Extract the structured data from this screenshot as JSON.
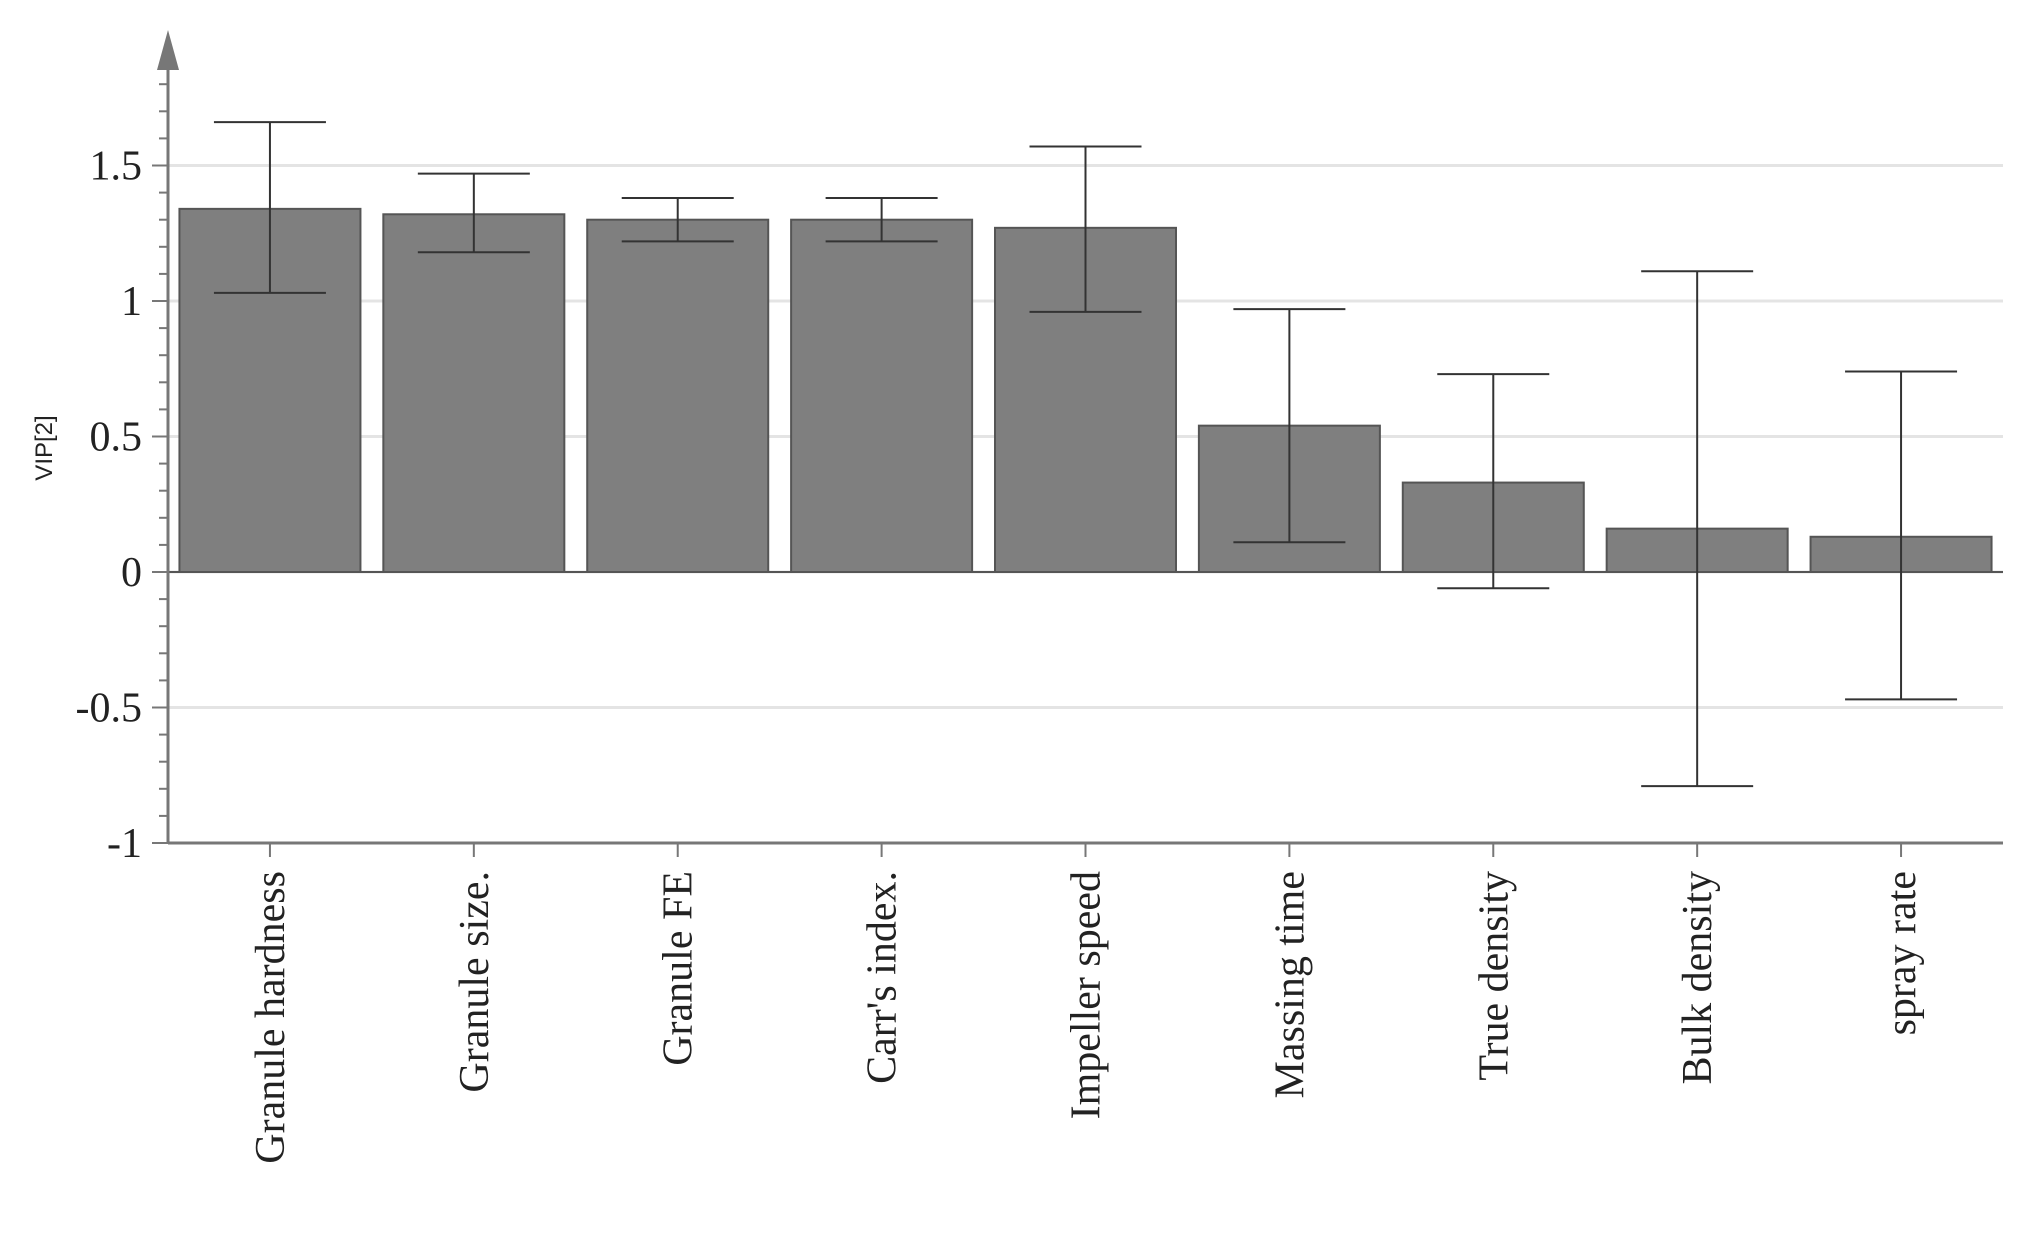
{
  "chart_data": {
    "type": "bar",
    "title": "",
    "xlabel": "",
    "ylabel": "VIP[2]",
    "ylim": [
      -1,
      2
    ],
    "yticks": [
      -1,
      -0.5,
      0,
      0.5,
      1,
      1.5
    ],
    "ytick_labels": [
      "-1",
      "-0.5",
      "0",
      "0.5",
      "1",
      "1.5"
    ],
    "grid": true,
    "bar_color": "#7f7f7f",
    "categories": [
      "Granule hardness",
      "Granule size.",
      "Granule FE",
      "Carr's index.",
      "Impeller speed",
      "Massing time",
      "True density",
      "Bulk density",
      "spray rate"
    ],
    "values": [
      1.34,
      1.32,
      1.3,
      1.3,
      1.27,
      0.54,
      0.33,
      0.16,
      0.13
    ],
    "error_low": [
      1.03,
      1.18,
      1.22,
      1.22,
      0.96,
      0.11,
      -0.06,
      -0.79,
      -0.47
    ],
    "error_high": [
      1.66,
      1.47,
      1.38,
      1.38,
      1.57,
      0.97,
      0.73,
      1.11,
      0.74
    ]
  }
}
